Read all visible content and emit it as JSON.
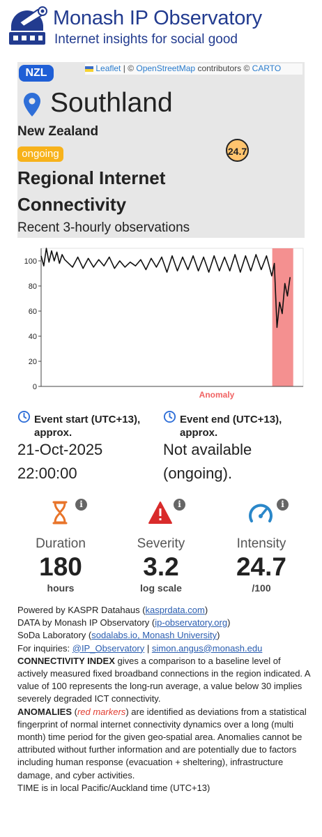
{
  "header": {
    "title": "Monash IP Observatory",
    "subtitle": "Internet insights for social good"
  },
  "map": {
    "attribution": {
      "leaflet": "Leaflet",
      "sep": "|",
      "copy1": "©",
      "osm": "OpenStreetMap",
      "contributors": "contributors ©",
      "carto": "CARTO"
    },
    "country_code": "NZL",
    "region": "Southland",
    "country": "New Zealand",
    "status": "ongoing",
    "score": "24.7",
    "title": "Regional Internet Connectivity",
    "subtitle": "Recent 3-hourly observations"
  },
  "chart_data": {
    "type": "line",
    "y_ticks": [
      "0",
      "20",
      "40",
      "60",
      "80",
      "100"
    ],
    "ylim": [
      0,
      110
    ],
    "anomaly_label": "Anomaly",
    "anomaly_range": [
      0.882,
      0.962
    ],
    "series": [
      {
        "x": [
          0.0,
          0.01,
          0.02,
          0.03,
          0.04,
          0.05,
          0.06,
          0.07,
          0.08,
          0.09,
          0.1,
          0.12,
          0.14,
          0.16,
          0.18,
          0.2,
          0.22,
          0.24,
          0.26,
          0.28,
          0.3,
          0.32,
          0.34,
          0.36,
          0.38,
          0.4,
          0.42,
          0.44,
          0.46,
          0.48,
          0.5,
          0.52,
          0.54,
          0.56,
          0.58,
          0.6,
          0.62,
          0.64,
          0.66,
          0.68,
          0.7,
          0.72,
          0.74,
          0.76,
          0.78,
          0.8,
          0.82,
          0.84,
          0.86,
          0.88,
          0.89,
          0.9,
          0.91,
          0.92,
          0.93,
          0.94,
          0.95
        ],
        "values": [
          104,
          96,
          110,
          99,
          108,
          100,
          107,
          98,
          105,
          101,
          99,
          95,
          103,
          94,
          102,
          95,
          101,
          96,
          103,
          94,
          100,
          95,
          99,
          96,
          101,
          93,
          102,
          95,
          103,
          91,
          104,
          92,
          103,
          93,
          104,
          92,
          103,
          91,
          104,
          92,
          103,
          92,
          105,
          91,
          104,
          92,
          105,
          93,
          104,
          88,
          98,
          47,
          67,
          58,
          82,
          72,
          87
        ]
      }
    ]
  },
  "events": {
    "start_label": "Event start (UTC+13), approx.",
    "start_date": "21-Oct-2025",
    "start_time": "22:00:00",
    "end_label": "Event end (UTC+13), approx.",
    "end_line1": "Not available",
    "end_line2": "(ongoing)."
  },
  "stats": {
    "duration": {
      "label": "Duration",
      "value": "180",
      "unit": "hours"
    },
    "severity": {
      "label": "Severity",
      "value": "3.2",
      "unit": "log scale"
    },
    "intensity": {
      "label": "Intensity",
      "value": "24.7",
      "unit": "/100"
    },
    "info_glyph": "i"
  },
  "footer": {
    "powered_prefix": "Powered by KASPR Datahaus (",
    "powered_link": "kasprdata.com",
    "powered_suffix": ")",
    "data_prefix": "DATA by Monash IP Observatory (",
    "data_link": "ip-observatory.org",
    "data_suffix": ")",
    "soda_prefix": "SoDa Laboratory (",
    "soda_link": "sodalabs.io, Monash University",
    "soda_suffix": ")",
    "inq_prefix": "For inquiries: ",
    "inq_link1": "@IP_Observatory",
    "inq_sep": " | ",
    "inq_link2": "simon.angus@monash.edu",
    "ci_head": "CONNECTIVITY INDEX",
    "ci_body": " gives a comparison to a baseline level of actively measured fixed broadband connections in the region indicated. A value of 100 represents the long-run average, a value below 30 implies severely degraded ICT connectivity.",
    "an_head": "ANOMALIES",
    "an_open": " (",
    "an_red": "red markers",
    "an_body": ") are identified as deviations from a statistical fingerprint of normal internet connectivity dynamics over a long (multi month) time period for the given geo-spatial area. Anomalies cannot be attributed without further information and are potentially due to factors including human response (evacuation + sheltering), infrastructure damage, and cyber activities.",
    "time_note": "TIME is in local Pacific/Auckland time (UTC+13)"
  }
}
